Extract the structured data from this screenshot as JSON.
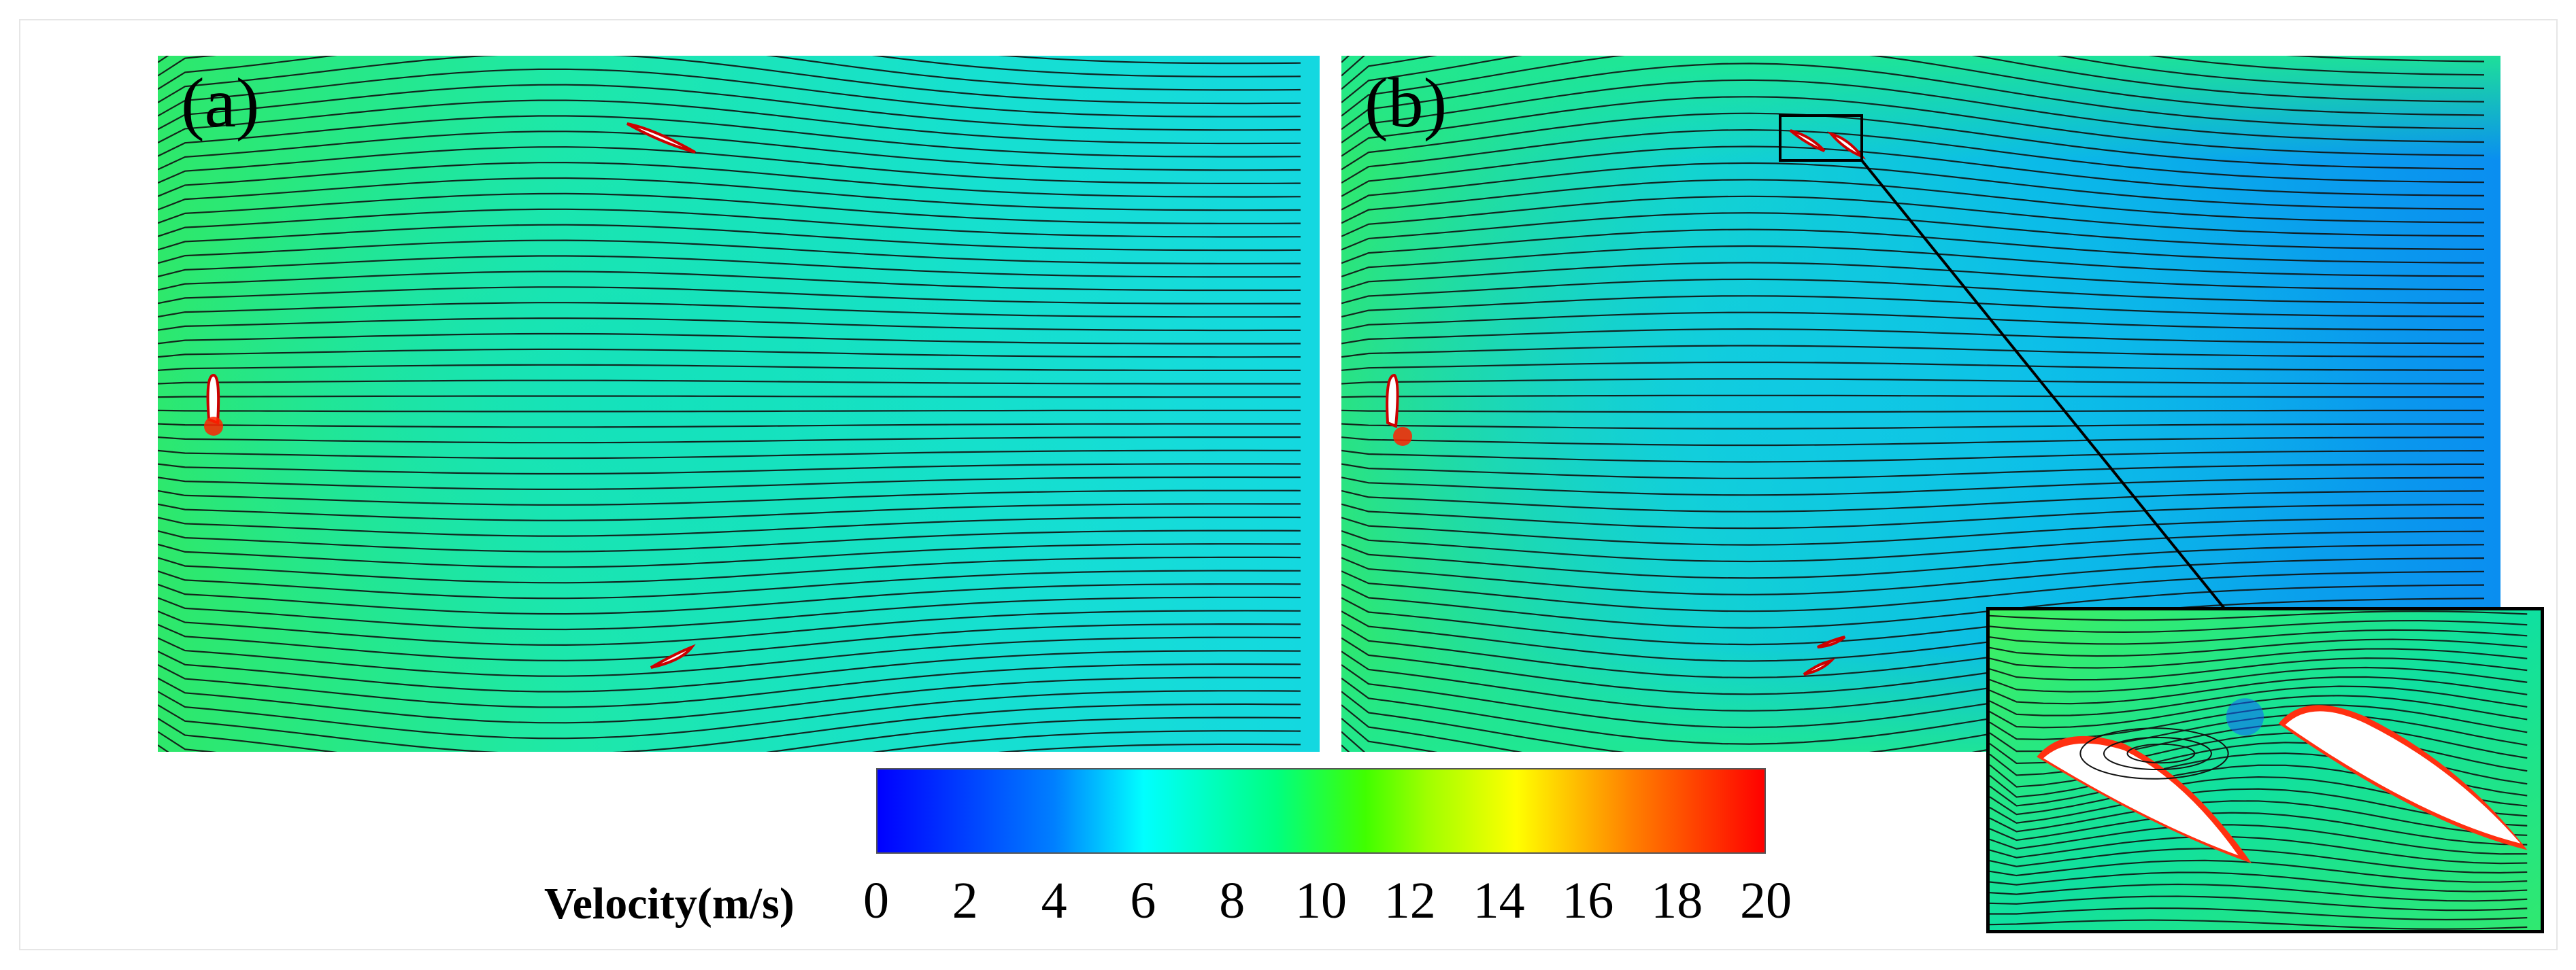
{
  "figure": {
    "panel_a_label": "(a)",
    "panel_b_label": "(b)",
    "colorbar": {
      "title": "Velocity(m/s)",
      "min": 0,
      "max": 20,
      "ticks": [
        "0",
        "2",
        "4",
        "6",
        "8",
        "10",
        "12",
        "14",
        "16",
        "18",
        "20"
      ],
      "colors": [
        "#0000ff",
        "#00ffff",
        "#00ff80",
        "#ffff00",
        "#ff0000"
      ]
    }
  }
}
